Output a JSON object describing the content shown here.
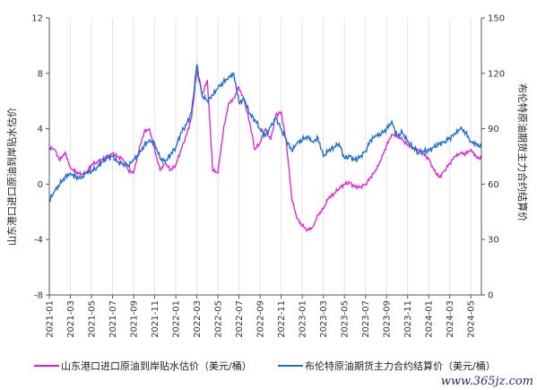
{
  "watermark": "www.365jz.com",
  "chart_data": {
    "type": "line",
    "title": "",
    "xlabel": "",
    "ylabel_left": "山东港口进口原油到岸贴水估价",
    "ylabel_right": "布伦特原油期货主力合约结算价",
    "x_ticks": [
      "2021-01",
      "2021-03",
      "2021-05",
      "2021-07",
      "2021-09",
      "2021-11",
      "2022-01",
      "2022-03",
      "2022-05",
      "2022-07",
      "2022-09",
      "2022-11",
      "2023-01",
      "2023-03",
      "2023-05",
      "2023-07",
      "2023-09",
      "2023-11",
      "2024-01",
      "2024-03",
      "2024-05"
    ],
    "x_range": [
      "2021-01",
      "2024-06"
    ],
    "y_left_range": [
      -8,
      12
    ],
    "y_left_ticks": [
      "-8",
      "-4",
      "0",
      "4",
      "8",
      "12"
    ],
    "y_right_range": [
      0,
      150
    ],
    "y_right_ticks": [
      "0",
      "30",
      "60",
      "90",
      "120",
      "150"
    ],
    "grid": "vertical at x ticks",
    "legend_position": "bottom",
    "series": [
      {
        "name": "山东港口进口原油到岸贴水估价（美元/桶）",
        "axis": "left",
        "color": "#e21bdc",
        "x": [
          "2021-01",
          "2021-01",
          "2021-02",
          "2021-02",
          "2021-03",
          "2021-03",
          "2021-04",
          "2021-04",
          "2021-05",
          "2021-05",
          "2021-06",
          "2021-06",
          "2021-07",
          "2021-07",
          "2021-08",
          "2021-08",
          "2021-09",
          "2021-09",
          "2021-10",
          "2021-10",
          "2021-11",
          "2021-11",
          "2021-12",
          "2021-12",
          "2022-01",
          "2022-01",
          "2022-02",
          "2022-02",
          "2022-03",
          "2022-03",
          "2022-04",
          "2022-04",
          "2022-05",
          "2022-05",
          "2022-06",
          "2022-06",
          "2022-07",
          "2022-07",
          "2022-08",
          "2022-08",
          "2022-09",
          "2022-09",
          "2022-10",
          "2022-10",
          "2022-11",
          "2022-11",
          "2022-12",
          "2022-12",
          "2023-01",
          "2023-01",
          "2023-02",
          "2023-02",
          "2023-03",
          "2023-03",
          "2023-04",
          "2023-04",
          "2023-05",
          "2023-05",
          "2023-06",
          "2023-06",
          "2023-07",
          "2023-07",
          "2023-08",
          "2023-08",
          "2023-09",
          "2023-09",
          "2023-10",
          "2023-10",
          "2023-11",
          "2023-11",
          "2023-12",
          "2023-12",
          "2024-01",
          "2024-01",
          "2024-02",
          "2024-02",
          "2024-03",
          "2024-03",
          "2024-04",
          "2024-04",
          "2024-05",
          "2024-05",
          "2024-06"
        ],
        "values": [
          2.6,
          2.5,
          1.7,
          2.3,
          1.2,
          0.9,
          0.7,
          0.8,
          1.4,
          1.6,
          1.8,
          2.0,
          2.2,
          2.0,
          1.8,
          1.0,
          0.8,
          2.4,
          3.8,
          4.0,
          2.5,
          1.0,
          1.5,
          1.0,
          1.4,
          2.5,
          3.5,
          4.8,
          8.2,
          6.5,
          7.5,
          1.0,
          0.8,
          3.8,
          5.8,
          6.2,
          7.0,
          6.0,
          4.5,
          2.5,
          3.0,
          4.0,
          3.2,
          5.0,
          5.2,
          3.0,
          -1.0,
          -2.5,
          -3.0,
          -3.3,
          -3.1,
          -2.2,
          -1.8,
          -1.0,
          -0.7,
          -0.3,
          0.0,
          0.1,
          -0.2,
          -0.2,
          0.0,
          0.5,
          1.0,
          1.8,
          2.8,
          3.6,
          3.5,
          3.2,
          2.8,
          2.6,
          2.5,
          2.2,
          1.8,
          1.0,
          0.5,
          1.0,
          1.5,
          2.0,
          2.2,
          2.2,
          2.5,
          2.0,
          1.8
        ]
      },
      {
        "name": "布伦特原油期货主力合约结算价（美元/桶）",
        "axis": "right",
        "color": "#1f6fd1",
        "x": [
          "2021-01",
          "2021-01",
          "2021-02",
          "2021-02",
          "2021-03",
          "2021-03",
          "2021-04",
          "2021-04",
          "2021-05",
          "2021-05",
          "2021-06",
          "2021-06",
          "2021-07",
          "2021-07",
          "2021-08",
          "2021-08",
          "2021-09",
          "2021-09",
          "2021-10",
          "2021-10",
          "2021-11",
          "2021-11",
          "2021-12",
          "2021-12",
          "2022-01",
          "2022-01",
          "2022-02",
          "2022-02",
          "2022-03",
          "2022-03",
          "2022-04",
          "2022-04",
          "2022-05",
          "2022-05",
          "2022-06",
          "2022-06",
          "2022-07",
          "2022-07",
          "2022-08",
          "2022-08",
          "2022-09",
          "2022-09",
          "2022-10",
          "2022-10",
          "2022-11",
          "2022-11",
          "2022-12",
          "2022-12",
          "2023-01",
          "2023-01",
          "2023-02",
          "2023-02",
          "2023-03",
          "2023-03",
          "2023-04",
          "2023-04",
          "2023-05",
          "2023-05",
          "2023-06",
          "2023-06",
          "2023-07",
          "2023-07",
          "2023-08",
          "2023-08",
          "2023-09",
          "2023-09",
          "2023-10",
          "2023-10",
          "2023-11",
          "2023-11",
          "2023-12",
          "2023-12",
          "2024-01",
          "2024-01",
          "2024-02",
          "2024-02",
          "2024-03",
          "2024-03",
          "2024-04",
          "2024-04",
          "2024-05",
          "2024-05",
          "2024-06"
        ],
        "values": [
          51,
          56,
          60,
          64,
          66,
          64,
          63,
          66,
          67,
          69,
          72,
          74,
          75,
          72,
          71,
          70,
          73,
          76,
          81,
          84,
          82,
          74,
          72,
          76,
          80,
          88,
          92,
          99,
          125,
          108,
          105,
          108,
          112,
          115,
          118,
          120,
          104,
          106,
          98,
          95,
          90,
          86,
          91,
          96,
          90,
          84,
          78,
          82,
          84,
          86,
          83,
          85,
          75,
          78,
          80,
          82,
          74,
          75,
          73,
          75,
          78,
          84,
          86,
          87,
          90,
          94,
          86,
          88,
          83,
          80,
          77,
          78,
          78,
          80,
          82,
          83,
          85,
          87,
          90,
          88,
          83,
          82,
          80
        ]
      }
    ]
  },
  "legend": {
    "magenta_label": "山东港口进口原油到岸贴水估价（美元/桶）",
    "blue_label": "布伦特原油期货主力合约结算价（美元/桶）"
  }
}
